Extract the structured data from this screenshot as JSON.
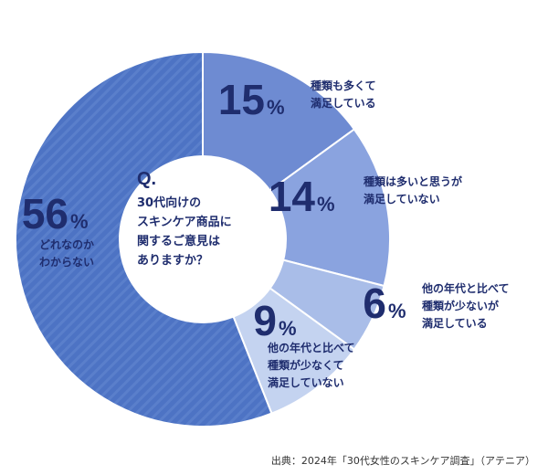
{
  "chart_data": {
    "type": "pie",
    "style": "donut",
    "start": "top",
    "direction": "clockwise",
    "slices": [
      {
        "value": 15,
        "number": "15",
        "unit": "%",
        "label_lines": [
          "種類も多くて",
          "満足している"
        ],
        "color": "#6e8bd2"
      },
      {
        "value": 14,
        "number": "14",
        "unit": "%",
        "label_lines": [
          "種類は多いと思うが",
          "満足していない"
        ],
        "color": "#8aa3df"
      },
      {
        "value": 6,
        "number": "6",
        "unit": "%",
        "label_lines": [
          "他の年代と比べて",
          "種類が少ないが",
          "満足している"
        ],
        "color": "#a9bde8"
      },
      {
        "value": 9,
        "number": "9",
        "unit": "%",
        "label_lines": [
          "他の年代と比べて",
          "種類が少なくて",
          "満足していない"
        ],
        "color": "#c4d3f0"
      },
      {
        "value": 56,
        "number": "56",
        "unit": "%",
        "label_lines": [
          "どれなのか",
          "わからない"
        ],
        "color": "#4d73c4",
        "striped": true
      }
    ],
    "center_question": {
      "heading": "Q.",
      "lines": [
        "30代向けの",
        "スキンケア商品に",
        "関するご意見は",
        "ありますか？"
      ]
    }
  },
  "source_text": "出典：2024年「30代女性のスキンケア調査」（アテニア）"
}
